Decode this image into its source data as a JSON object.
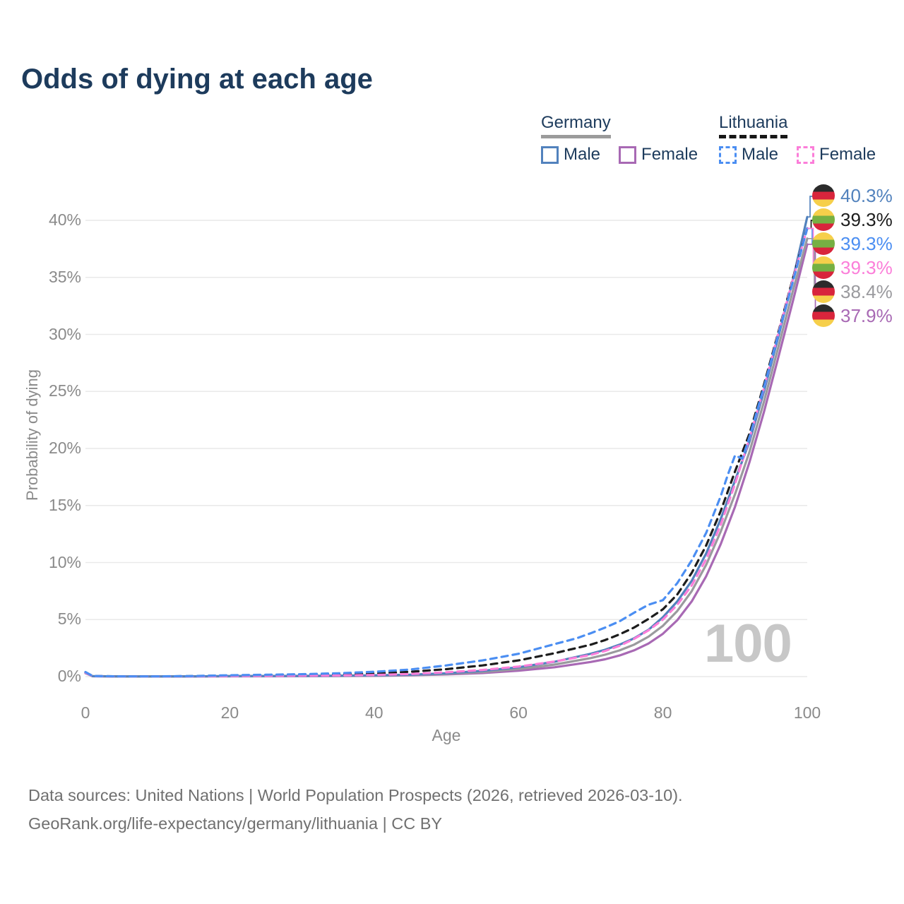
{
  "title": "Odds of dying at each age",
  "watermark": "100",
  "legend": {
    "groups": [
      {
        "country": "Germany",
        "line_style": "solid",
        "underline_color": "#9b9b9b",
        "items": [
          {
            "label": "Male",
            "color": "#5282bd",
            "dashed": false
          },
          {
            "label": "Female",
            "color": "#a869b4",
            "dashed": false
          }
        ]
      },
      {
        "country": "Lithuania",
        "line_style": "dashed",
        "underline_color": "#161616",
        "items": [
          {
            "label": "Male",
            "color": "#4b8ef2",
            "dashed": true
          },
          {
            "label": "Female",
            "color": "#fb7ed9",
            "dashed": true
          }
        ]
      }
    ]
  },
  "footer": {
    "line1": "Data sources: United Nations | World Population Prospects (2026, retrieved 2026-03-10).",
    "line2": "GeoRank.org/life-expectancy/germany/lithuania | CC BY"
  },
  "flag_colors": {
    "germany": [
      "#2b2b2b",
      "#d8253c",
      "#f6cf4b"
    ],
    "lithuania": [
      "#f6cf4b",
      "#76b043",
      "#d8253c"
    ]
  },
  "end_labels": [
    {
      "series_id": "de-male",
      "flag": "germany",
      "text": "40.3%",
      "color": "#5282bd"
    },
    {
      "series_id": "lt-total",
      "flag": "lithuania",
      "text": "39.3%",
      "color": "#1c1c1c"
    },
    {
      "series_id": "lt-male",
      "flag": "lithuania",
      "text": "39.3%",
      "color": "#4b8ef2"
    },
    {
      "series_id": "lt-female",
      "flag": "lithuania",
      "text": "39.3%",
      "color": "#fb7ed9"
    },
    {
      "series_id": "de-total",
      "flag": "germany",
      "text": "38.4%",
      "color": "#9a9a9e"
    },
    {
      "series_id": "de-female",
      "flag": "germany",
      "text": "37.9%",
      "color": "#a869b4"
    }
  ],
  "chart_data": {
    "type": "line",
    "title": "Odds of dying at each age",
    "xlabel": "Age",
    "ylabel": "Probability of dying",
    "xlim": [
      0,
      100
    ],
    "ylim": [
      0,
      42
    ],
    "xticks": [
      0,
      20,
      40,
      60,
      80,
      100
    ],
    "yticks": [
      0,
      5,
      10,
      15,
      20,
      25,
      30,
      35,
      40
    ],
    "ytick_suffix": "%",
    "grid": "horizontal-only",
    "legend_position": "top-right",
    "series": [
      {
        "id": "de-female",
        "name": "Germany Female",
        "color": "#a869b4",
        "dashed": false,
        "end_value": 37.9,
        "points": [
          [
            0,
            0.3
          ],
          [
            1,
            0.03
          ],
          [
            5,
            0.01
          ],
          [
            10,
            0.01
          ],
          [
            15,
            0.015
          ],
          [
            20,
            0.025
          ],
          [
            25,
            0.03
          ],
          [
            30,
            0.035
          ],
          [
            35,
            0.05
          ],
          [
            40,
            0.07
          ],
          [
            45,
            0.11
          ],
          [
            50,
            0.19
          ],
          [
            55,
            0.31
          ],
          [
            60,
            0.52
          ],
          [
            65,
            0.82
          ],
          [
            70,
            1.28
          ],
          [
            72,
            1.52
          ],
          [
            74,
            1.85
          ],
          [
            76,
            2.3
          ],
          [
            78,
            2.9
          ],
          [
            80,
            3.75
          ],
          [
            82,
            4.95
          ],
          [
            84,
            6.6
          ],
          [
            86,
            8.8
          ],
          [
            88,
            11.6
          ],
          [
            90,
            14.9
          ],
          [
            92,
            18.8
          ],
          [
            94,
            23.2
          ],
          [
            96,
            28.0
          ],
          [
            98,
            32.9
          ],
          [
            100,
            37.9
          ]
        ]
      },
      {
        "id": "de-total",
        "name": "Germany",
        "color": "#9a9a9e",
        "dashed": false,
        "end_value": 38.4,
        "points": [
          [
            0,
            0.33
          ],
          [
            1,
            0.035
          ],
          [
            5,
            0.01
          ],
          [
            10,
            0.01
          ],
          [
            15,
            0.018
          ],
          [
            20,
            0.04
          ],
          [
            25,
            0.04
          ],
          [
            30,
            0.05
          ],
          [
            35,
            0.065
          ],
          [
            40,
            0.09
          ],
          [
            45,
            0.14
          ],
          [
            50,
            0.24
          ],
          [
            55,
            0.4
          ],
          [
            60,
            0.66
          ],
          [
            65,
            1.05
          ],
          [
            70,
            1.62
          ],
          [
            72,
            1.92
          ],
          [
            74,
            2.3
          ],
          [
            76,
            2.8
          ],
          [
            78,
            3.5
          ],
          [
            80,
            4.45
          ],
          [
            82,
            5.75
          ],
          [
            84,
            7.5
          ],
          [
            86,
            9.8
          ],
          [
            88,
            12.7
          ],
          [
            90,
            16.0
          ],
          [
            92,
            19.7
          ],
          [
            94,
            24.1
          ],
          [
            96,
            28.9
          ],
          [
            98,
            33.8
          ],
          [
            100,
            38.4
          ]
        ]
      },
      {
        "id": "de-male",
        "name": "Germany Male",
        "color": "#5282bd",
        "dashed": false,
        "end_value": 40.3,
        "points": [
          [
            0,
            0.35
          ],
          [
            1,
            0.04
          ],
          [
            5,
            0.01
          ],
          [
            10,
            0.01
          ],
          [
            15,
            0.02
          ],
          [
            20,
            0.05
          ],
          [
            25,
            0.05
          ],
          [
            30,
            0.06
          ],
          [
            35,
            0.08
          ],
          [
            40,
            0.11
          ],
          [
            45,
            0.17
          ],
          [
            50,
            0.29
          ],
          [
            55,
            0.5
          ],
          [
            60,
            0.82
          ],
          [
            65,
            1.3
          ],
          [
            70,
            2.0
          ],
          [
            72,
            2.35
          ],
          [
            74,
            2.8
          ],
          [
            76,
            3.35
          ],
          [
            78,
            4.1
          ],
          [
            80,
            5.2
          ],
          [
            82,
            6.6
          ],
          [
            84,
            8.4
          ],
          [
            86,
            10.8
          ],
          [
            88,
            13.8
          ],
          [
            90,
            17.2
          ],
          [
            92,
            20.6
          ],
          [
            94,
            25.0
          ],
          [
            96,
            29.8
          ],
          [
            98,
            34.8
          ],
          [
            100,
            40.3
          ]
        ]
      },
      {
        "id": "lt-total",
        "name": "Lithuania",
        "color": "#1c1c1c",
        "dashed": true,
        "end_value": 39.3,
        "points": [
          [
            0,
            0.38
          ],
          [
            1,
            0.045
          ],
          [
            5,
            0.018
          ],
          [
            10,
            0.018
          ],
          [
            15,
            0.04
          ],
          [
            20,
            0.09
          ],
          [
            25,
            0.11
          ],
          [
            30,
            0.14
          ],
          [
            35,
            0.19
          ],
          [
            40,
            0.27
          ],
          [
            45,
            0.42
          ],
          [
            50,
            0.65
          ],
          [
            55,
            0.98
          ],
          [
            60,
            1.42
          ],
          [
            65,
            2.05
          ],
          [
            70,
            2.8
          ],
          [
            72,
            3.2
          ],
          [
            74,
            3.7
          ],
          [
            76,
            4.3
          ],
          [
            78,
            5.05
          ],
          [
            80,
            5.9
          ],
          [
            82,
            7.2
          ],
          [
            84,
            9.1
          ],
          [
            86,
            11.5
          ],
          [
            88,
            14.5
          ],
          [
            90,
            18.0
          ],
          [
            92,
            21.3
          ],
          [
            94,
            25.6
          ],
          [
            96,
            30.2
          ],
          [
            98,
            34.9
          ],
          [
            100,
            39.3
          ]
        ]
      },
      {
        "id": "lt-female",
        "name": "Lithuania Female",
        "color": "#fb7ed9",
        "dashed": true,
        "end_value": 39.3,
        "points": [
          [
            0,
            0.35
          ],
          [
            1,
            0.04
          ],
          [
            5,
            0.015
          ],
          [
            10,
            0.015
          ],
          [
            15,
            0.025
          ],
          [
            20,
            0.05
          ],
          [
            25,
            0.06
          ],
          [
            30,
            0.08
          ],
          [
            35,
            0.1
          ],
          [
            40,
            0.14
          ],
          [
            45,
            0.23
          ],
          [
            50,
            0.38
          ],
          [
            55,
            0.58
          ],
          [
            60,
            0.88
          ],
          [
            65,
            1.32
          ],
          [
            70,
            1.9
          ],
          [
            72,
            2.25
          ],
          [
            74,
            2.7
          ],
          [
            76,
            3.3
          ],
          [
            78,
            4.05
          ],
          [
            80,
            5.0
          ],
          [
            82,
            6.3
          ],
          [
            84,
            8.0
          ],
          [
            86,
            10.3
          ],
          [
            88,
            13.3
          ],
          [
            90,
            16.9
          ],
          [
            92,
            20.9
          ],
          [
            94,
            25.3
          ],
          [
            96,
            30.1
          ],
          [
            98,
            34.8
          ],
          [
            100,
            39.3
          ]
        ]
      },
      {
        "id": "lt-male",
        "name": "Lithuania Male",
        "color": "#4b8ef2",
        "dashed": true,
        "end_value": 39.3,
        "points": [
          [
            0,
            0.4
          ],
          [
            1,
            0.05
          ],
          [
            5,
            0.02
          ],
          [
            10,
            0.02
          ],
          [
            15,
            0.05
          ],
          [
            20,
            0.12
          ],
          [
            25,
            0.16
          ],
          [
            30,
            0.21
          ],
          [
            35,
            0.29
          ],
          [
            40,
            0.42
          ],
          [
            45,
            0.62
          ],
          [
            50,
            0.98
          ],
          [
            55,
            1.42
          ],
          [
            60,
            2.0
          ],
          [
            65,
            2.85
          ],
          [
            68,
            3.35
          ],
          [
            70,
            3.8
          ],
          [
            72,
            4.3
          ],
          [
            74,
            4.85
          ],
          [
            76,
            5.6
          ],
          [
            78,
            6.3
          ],
          [
            79,
            6.5
          ],
          [
            80,
            6.7
          ],
          [
            82,
            8.2
          ],
          [
            84,
            10.2
          ],
          [
            86,
            12.6
          ],
          [
            88,
            15.8
          ],
          [
            89,
            17.7
          ],
          [
            90,
            19.4
          ],
          [
            91,
            19.1
          ],
          [
            92,
            21.0
          ],
          [
            94,
            25.4
          ],
          [
            96,
            30.0
          ],
          [
            98,
            34.6
          ],
          [
            100,
            39.3
          ]
        ]
      }
    ]
  }
}
